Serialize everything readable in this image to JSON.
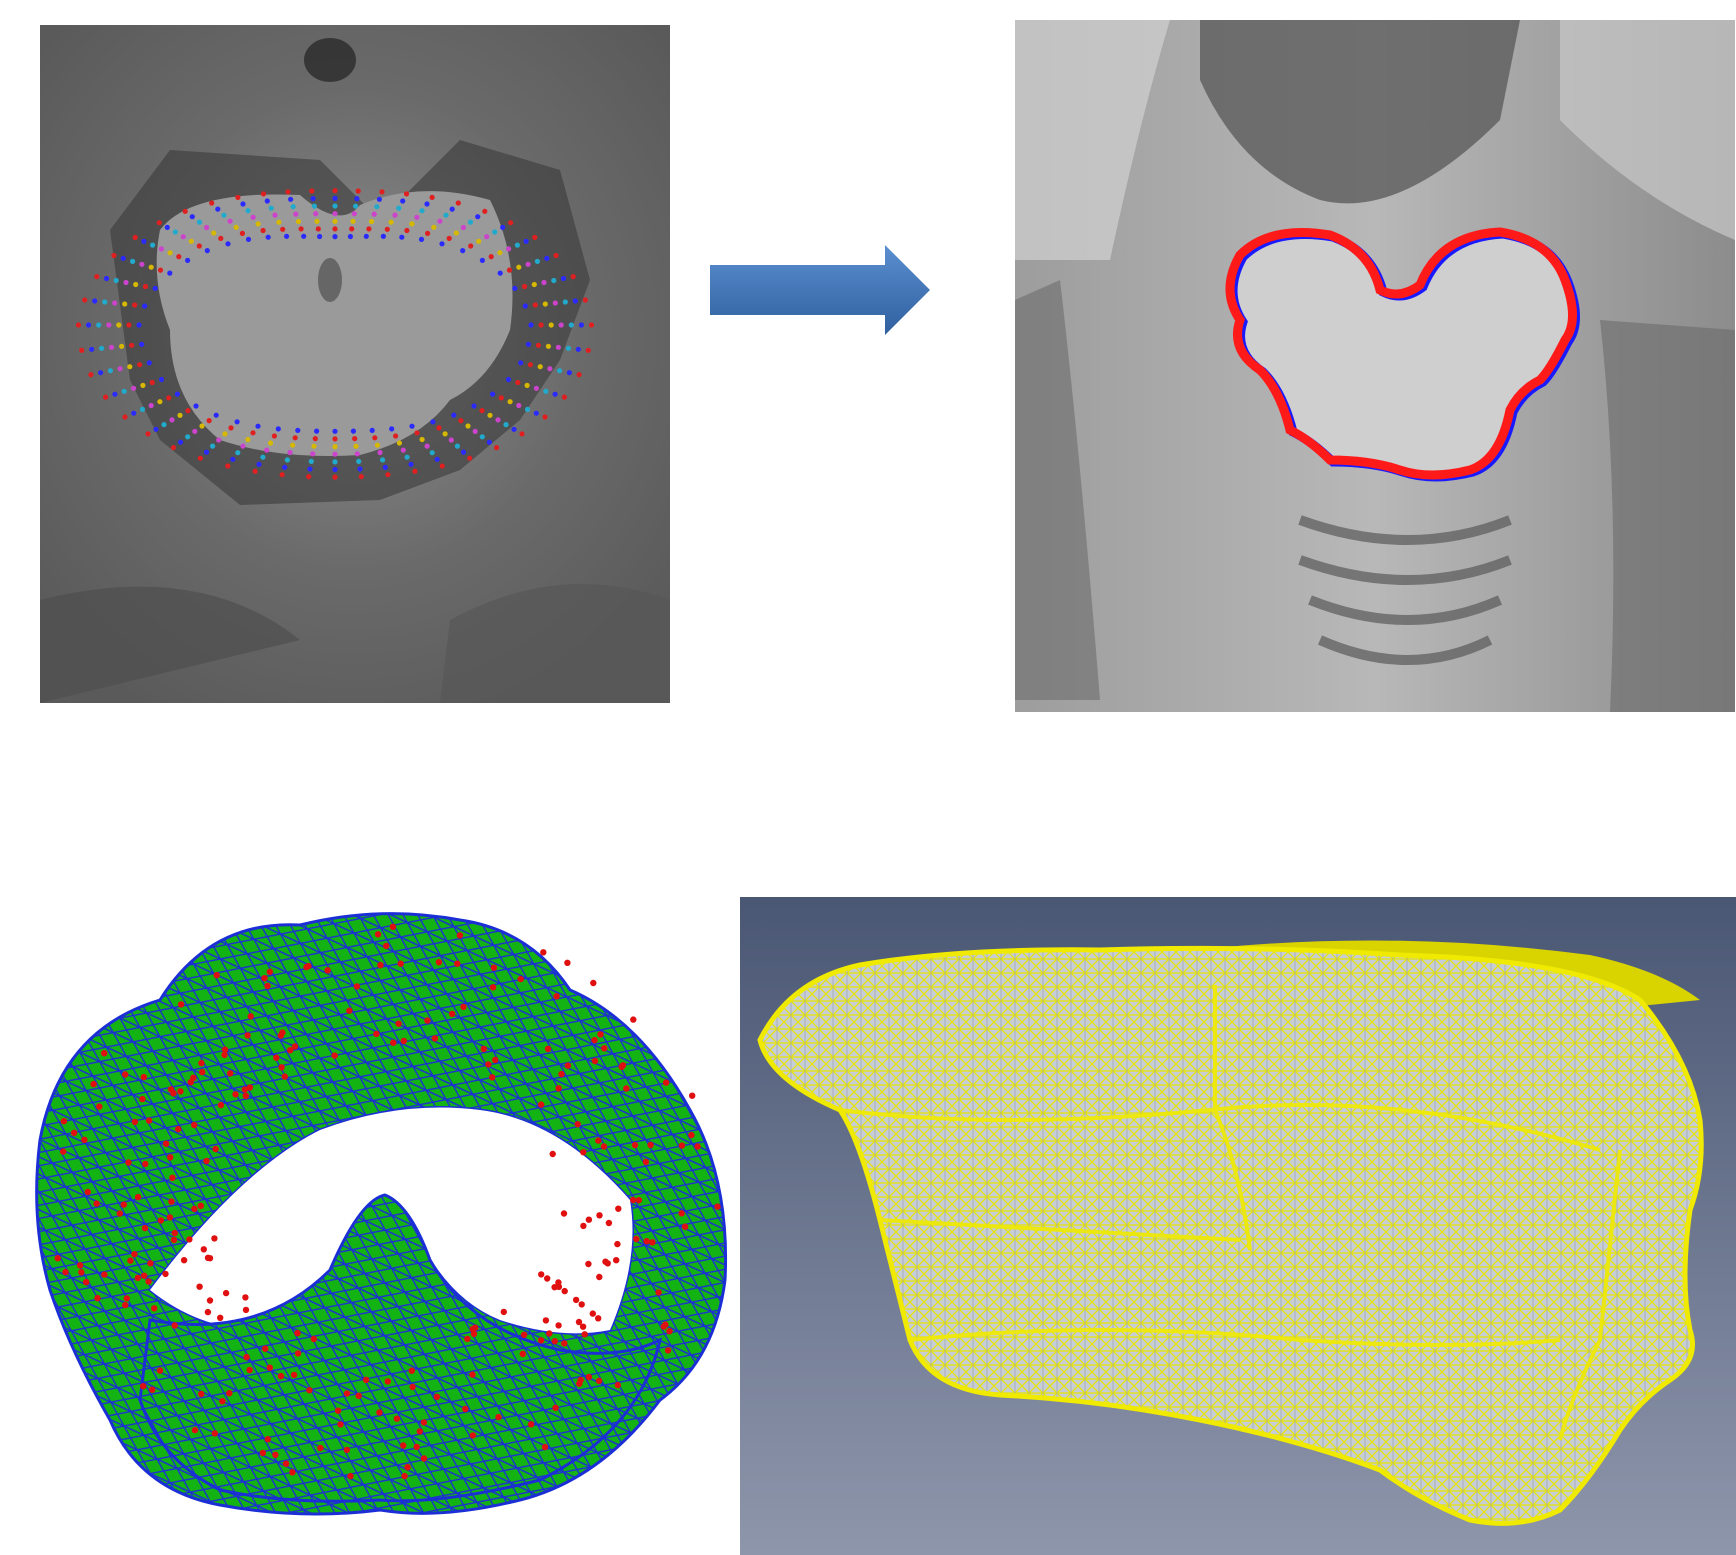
{
  "figure": {
    "panels": [
      {
        "id": "a",
        "icon": "mri-slice-with-landmark-profiles"
      },
      {
        "id": "b",
        "icon": "mri-slice-with-segmentation-contour"
      },
      {
        "id": "c",
        "icon": "green-surface-mesh-with-red-points"
      },
      {
        "id": "d",
        "icon": "yellow-wireframe-3d-model"
      }
    ],
    "arrow": {
      "icon": "right-arrow",
      "color": "#3f73b6"
    },
    "colors": {
      "contour_red": "#ff1a1a",
      "contour_blue": "#1a1aff",
      "mesh_green": "#13b613",
      "mesh_lines": "#1c2fd6",
      "points_red": "#e01010",
      "wire_yellow": "#e8e000",
      "render_bg_top": "#4a5774",
      "render_bg_bottom": "#8e96ab"
    }
  }
}
